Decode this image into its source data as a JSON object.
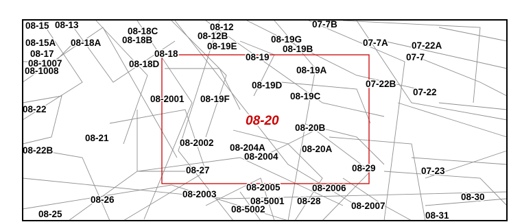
{
  "map": {
    "highlight_color": "#cc0000",
    "featured_parcel": "08-20",
    "parcel_labels": [
      "08-15",
      "08-13",
      "08-18C",
      "08-12",
      "07-7B",
      "08-15A",
      "08-18A",
      "08-18B",
      "08-12B",
      "08-19G",
      "08-17",
      "08-19E",
      "08-19B",
      "07-7A",
      "07-22A",
      "08-1007",
      "08-18",
      "08-19",
      "07-7",
      "08-1008",
      "08-18D",
      "08-19A",
      "08-19D",
      "07-22B",
      "08-19C",
      "07-22",
      "08-2001",
      "08-19F",
      "08-22",
      "08-20B",
      "08-21",
      "08-2002",
      "08-204A",
      "08-20A",
      "08-22B",
      "08-2004",
      "08-27",
      "08-29",
      "07-23",
      "08-2005",
      "08-2006",
      "08-2003",
      "08-30",
      "08-26",
      "08-5001",
      "08-28",
      "08-2007",
      "08-5002",
      "08-25",
      "08-31"
    ]
  }
}
